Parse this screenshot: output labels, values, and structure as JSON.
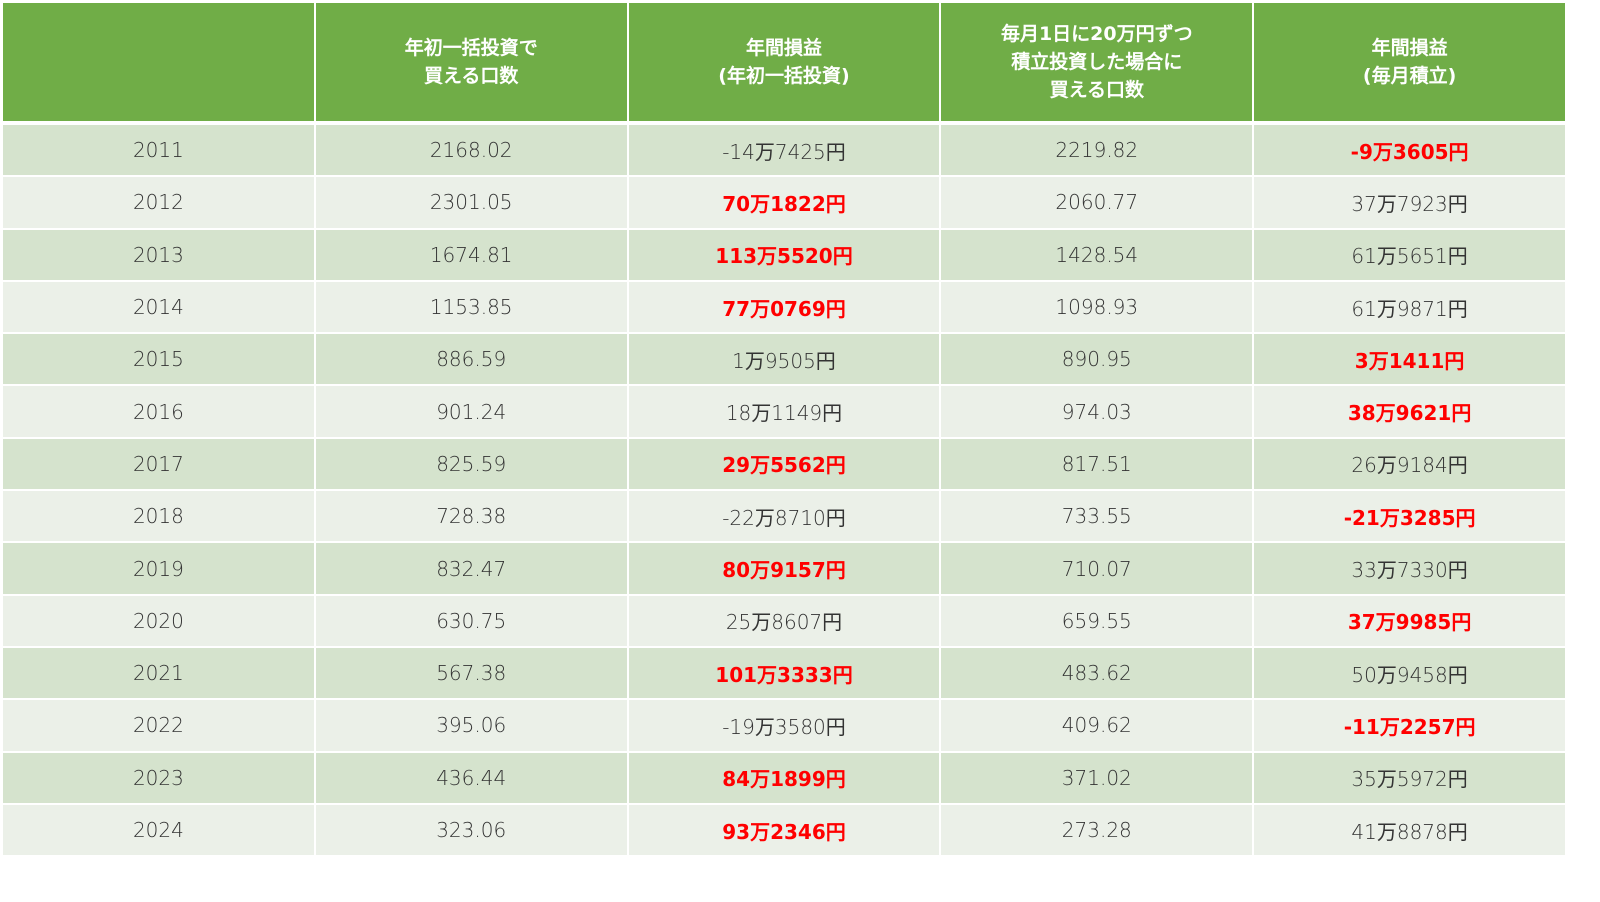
{
  "table": {
    "headers": [
      "",
      "年初一括投資で\n買える口数",
      "年間損益\n(年初一括投資)",
      "毎月1日に20万円ずつ\n積立投資した場合に\n買える口数",
      "年間損益\n(毎月積立)"
    ],
    "colors": {
      "header_bg": "#70ad47",
      "row_odd": "#d5e3cd",
      "row_even": "#ebf0e8",
      "highlight": "#ff0000"
    },
    "rows": [
      {
        "year": "2011",
        "lump_units": "2168.02",
        "lump_pl": "-14万7425円",
        "lump_hl": false,
        "monthly_units": "2219.82",
        "monthly_pl": "-9万3605円",
        "monthly_hl": true
      },
      {
        "year": "2012",
        "lump_units": "2301.05",
        "lump_pl": "70万1822円",
        "lump_hl": true,
        "monthly_units": "2060.77",
        "monthly_pl": "37万7923円",
        "monthly_hl": false
      },
      {
        "year": "2013",
        "lump_units": "1674.81",
        "lump_pl": "113万5520円",
        "lump_hl": true,
        "monthly_units": "1428.54",
        "monthly_pl": "61万5651円",
        "monthly_hl": false
      },
      {
        "year": "2014",
        "lump_units": "1153.85",
        "lump_pl": "77万0769円",
        "lump_hl": true,
        "monthly_units": "1098.93",
        "monthly_pl": "61万9871円",
        "monthly_hl": false
      },
      {
        "year": "2015",
        "lump_units": "886.59",
        "lump_pl": "1万9505円",
        "lump_hl": false,
        "monthly_units": "890.95",
        "monthly_pl": "3万1411円",
        "monthly_hl": true
      },
      {
        "year": "2016",
        "lump_units": "901.24",
        "lump_pl": "18万1149円",
        "lump_hl": false,
        "monthly_units": "974.03",
        "monthly_pl": "38万9621円",
        "monthly_hl": true
      },
      {
        "year": "2017",
        "lump_units": "825.59",
        "lump_pl": "29万5562円",
        "lump_hl": true,
        "monthly_units": "817.51",
        "monthly_pl": "26万9184円",
        "monthly_hl": false
      },
      {
        "year": "2018",
        "lump_units": "728.38",
        "lump_pl": "-22万8710円",
        "lump_hl": false,
        "monthly_units": "733.55",
        "monthly_pl": "-21万3285円",
        "monthly_hl": true
      },
      {
        "year": "2019",
        "lump_units": "832.47",
        "lump_pl": "80万9157円",
        "lump_hl": true,
        "monthly_units": "710.07",
        "monthly_pl": "33万7330円",
        "monthly_hl": false
      },
      {
        "year": "2020",
        "lump_units": "630.75",
        "lump_pl": "25万8607円",
        "lump_hl": false,
        "monthly_units": "659.55",
        "monthly_pl": "37万9985円",
        "monthly_hl": true
      },
      {
        "year": "2021",
        "lump_units": "567.38",
        "lump_pl": "101万3333円",
        "lump_hl": true,
        "monthly_units": "483.62",
        "monthly_pl": "50万9458円",
        "monthly_hl": false
      },
      {
        "year": "2022",
        "lump_units": "395.06",
        "lump_pl": "-19万3580円",
        "lump_hl": false,
        "monthly_units": "409.62",
        "monthly_pl": "-11万2257円",
        "monthly_hl": true
      },
      {
        "year": "2023",
        "lump_units": "436.44",
        "lump_pl": "84万1899円",
        "lump_hl": true,
        "monthly_units": "371.02",
        "monthly_pl": "35万5972円",
        "monthly_hl": false
      },
      {
        "year": "2024",
        "lump_units": "323.06",
        "lump_pl": "93万2346円",
        "lump_hl": true,
        "monthly_units": "273.28",
        "monthly_pl": "41万8878円",
        "monthly_hl": false
      }
    ]
  }
}
